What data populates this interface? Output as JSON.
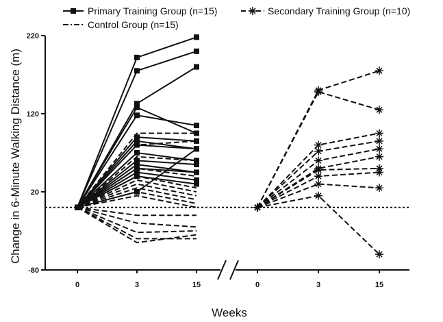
{
  "chart_data": {
    "type": "line",
    "title": "",
    "ylabel": "Change in 6-Minute Walking Distance (m)",
    "xlabel": "Weeks",
    "ylim": [
      -80,
      220
    ],
    "y_ticks": [
      "220",
      "120",
      "20",
      "-80"
    ],
    "y_tick_values": [
      220,
      120,
      20,
      -80
    ],
    "panels": [
      {
        "x_tick_labels": [
          "0",
          "3",
          "15"
        ]
      },
      {
        "x_tick_labels": [
          "0",
          "3",
          "15"
        ]
      }
    ],
    "axis_break": true,
    "baseline": 0,
    "legend": {
      "placement": "top",
      "entries": [
        {
          "label": "Primary Training Group (n=15)",
          "style": "solid-square"
        },
        {
          "label": "Secondary Training Group (n=10)",
          "style": "dashed-asterisk"
        },
        {
          "label": "Control Group (n=15)",
          "style": "dash-dot"
        }
      ]
    },
    "series": [
      {
        "group": "Primary Training Group (n=15)",
        "panel": 0,
        "values": [
          [
            0,
            192,
            218
          ],
          [
            0,
            175,
            200
          ],
          [
            0,
            133,
            180
          ],
          [
            0,
            118,
            105
          ],
          [
            0,
            128,
            95
          ],
          [
            0,
            90,
            85
          ],
          [
            0,
            85,
            75
          ],
          [
            0,
            80,
            75
          ],
          [
            0,
            70,
            60
          ],
          [
            0,
            60,
            55
          ],
          [
            0,
            55,
            45
          ],
          [
            0,
            50,
            45
          ],
          [
            0,
            45,
            35
          ],
          [
            0,
            40,
            30
          ],
          [
            0,
            20,
            75
          ]
        ]
      },
      {
        "group": "Control Group (n=15)",
        "panel": 0,
        "values": [
          [
            0,
            95,
            95
          ],
          [
            0,
            80,
            85
          ],
          [
            0,
            65,
            60
          ],
          [
            0,
            50,
            40
          ],
          [
            0,
            40,
            25
          ],
          [
            0,
            35,
            20
          ],
          [
            0,
            30,
            15
          ],
          [
            0,
            25,
            10
          ],
          [
            0,
            20,
            5
          ],
          [
            0,
            15,
            0
          ],
          [
            0,
            -10,
            -10
          ],
          [
            0,
            -20,
            -25
          ],
          [
            0,
            -32,
            -30
          ],
          [
            0,
            -40,
            -40
          ],
          [
            0,
            -45,
            -35
          ]
        ]
      },
      {
        "group": "Secondary Training Group (n=10)",
        "panel": 1,
        "values": [
          [
            0,
            150,
            175
          ],
          [
            0,
            148,
            125
          ],
          [
            0,
            80,
            95
          ],
          [
            0,
            72,
            85
          ],
          [
            0,
            60,
            75
          ],
          [
            0,
            50,
            65
          ],
          [
            0,
            48,
            50
          ],
          [
            0,
            40,
            45
          ],
          [
            0,
            30,
            25
          ],
          [
            0,
            15,
            -60
          ]
        ]
      }
    ]
  }
}
